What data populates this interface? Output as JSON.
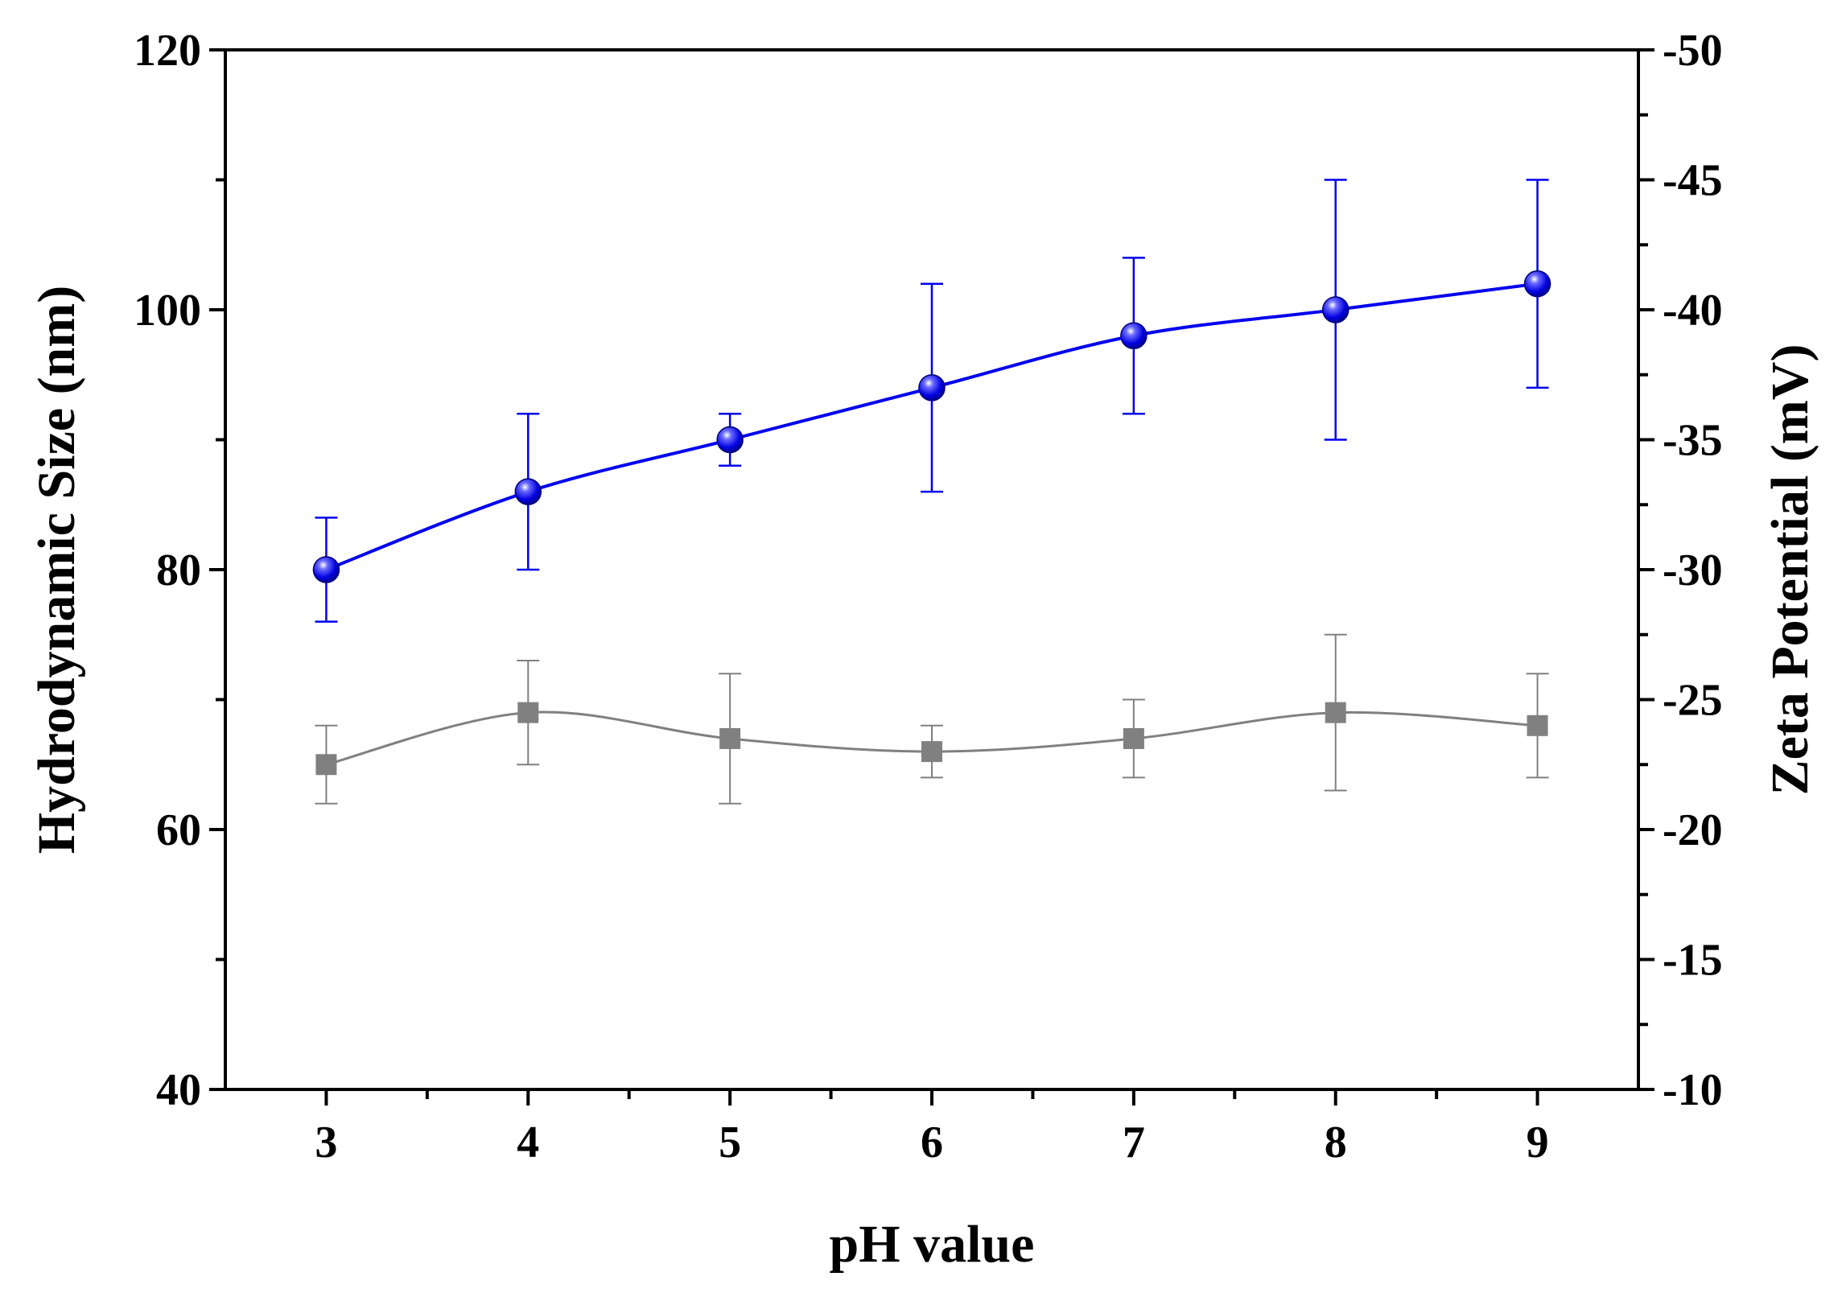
{
  "chart_data": {
    "type": "line",
    "xlabel": "pH value",
    "ylabel_left": "Hydrodynamic Size (nm)",
    "ylabel_right": "Zeta Potential (mV)",
    "xlim": [
      2.5,
      9.5
    ],
    "x_ticks": [
      "3",
      "4",
      "5",
      "6",
      "7",
      "8",
      "9"
    ],
    "ylim_left": [
      40,
      120
    ],
    "y_ticks_left": [
      "40",
      "60",
      "80",
      "100",
      "120"
    ],
    "ylim_right": [
      -10,
      -50
    ],
    "y_ticks_right": [
      "-10",
      "-15",
      "-20",
      "-25",
      "-30",
      "-35",
      "-40",
      "-45",
      "-50"
    ],
    "series": [
      {
        "name": "Hydrodynamic Size",
        "axis": "left",
        "marker": "sphere",
        "color": "#0000ee",
        "x": [
          3,
          4,
          5,
          6,
          7,
          8,
          9
        ],
        "values": [
          80,
          86,
          90,
          94,
          98,
          100,
          102
        ],
        "error": [
          4,
          6,
          2,
          8,
          6,
          10,
          8
        ]
      },
      {
        "name": "Zeta Potential",
        "axis": "left",
        "marker": "square",
        "color": "#808080",
        "x": [
          3,
          4,
          5,
          6,
          7,
          8,
          9
        ],
        "values": [
          65,
          69,
          67,
          66,
          67,
          69,
          68
        ],
        "error": [
          3,
          4,
          5,
          2,
          3,
          6,
          4
        ]
      }
    ]
  }
}
